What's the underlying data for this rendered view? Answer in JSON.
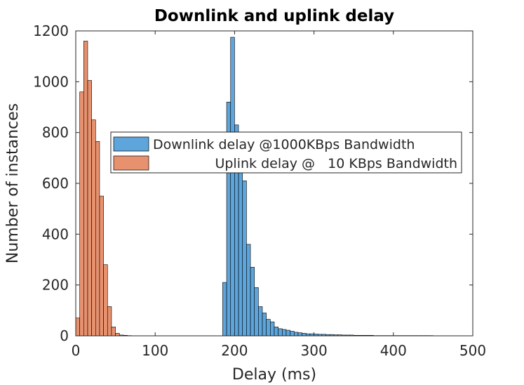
{
  "chart_data": {
    "type": "bar",
    "title": "Downlink and uplink delay",
    "xlabel": "Delay (ms)",
    "ylabel": "Number of instances",
    "xlim": [
      0,
      500
    ],
    "ylim": [
      0,
      1200
    ],
    "xticks": [
      "0",
      "100",
      "200",
      "300",
      "400",
      "500"
    ],
    "yticks": [
      "0",
      "200",
      "400",
      "600",
      "800",
      "1000",
      "1200"
    ],
    "grid": false,
    "legend_position": "center",
    "bin_width_ms": 5,
    "series": [
      {
        "name": "Downlink delay @1000KBps Bandwidth",
        "color": "#5DA5DA",
        "bins": [
          [
            185,
            210
          ],
          [
            190,
            920
          ],
          [
            195,
            1175
          ],
          [
            200,
            830
          ],
          [
            205,
            670
          ],
          [
            210,
            610
          ],
          [
            215,
            360
          ],
          [
            220,
            270
          ],
          [
            225,
            190
          ],
          [
            230,
            115
          ],
          [
            235,
            90
          ],
          [
            240,
            65
          ],
          [
            245,
            55
          ],
          [
            250,
            35
          ],
          [
            255,
            28
          ],
          [
            260,
            25
          ],
          [
            265,
            22
          ],
          [
            270,
            18
          ],
          [
            275,
            14
          ],
          [
            280,
            12
          ],
          [
            285,
            10
          ],
          [
            290,
            8
          ],
          [
            295,
            8
          ],
          [
            300,
            7
          ],
          [
            305,
            6
          ],
          [
            310,
            6
          ],
          [
            315,
            5
          ],
          [
            320,
            5
          ],
          [
            325,
            4
          ],
          [
            330,
            4
          ],
          [
            335,
            3
          ],
          [
            340,
            3
          ],
          [
            345,
            3
          ],
          [
            350,
            2
          ],
          [
            355,
            2
          ],
          [
            360,
            2
          ],
          [
            365,
            2
          ],
          [
            370,
            2
          ],
          [
            375,
            1
          ],
          [
            380,
            1
          ],
          [
            385,
            1
          ],
          [
            390,
            1
          ],
          [
            395,
            1
          ],
          [
            400,
            1
          ],
          [
            405,
            1
          ],
          [
            410,
            1
          ],
          [
            415,
            1
          ],
          [
            420,
            1
          ],
          [
            425,
            1
          ],
          [
            430,
            1
          ],
          [
            435,
            1
          ],
          [
            440,
            1
          ],
          [
            445,
            1
          ]
        ]
      },
      {
        "name": "Uplink delay @   10 KBps Bandwidth",
        "color": "#E8916E",
        "bins": [
          [
            0,
            70
          ],
          [
            5,
            960
          ],
          [
            10,
            1160
          ],
          [
            15,
            1005
          ],
          [
            20,
            850
          ],
          [
            25,
            765
          ],
          [
            30,
            550
          ],
          [
            35,
            280
          ],
          [
            40,
            115
          ],
          [
            45,
            35
          ],
          [
            50,
            10
          ],
          [
            55,
            3
          ],
          [
            60,
            2
          ],
          [
            65,
            1
          ]
        ]
      }
    ]
  }
}
